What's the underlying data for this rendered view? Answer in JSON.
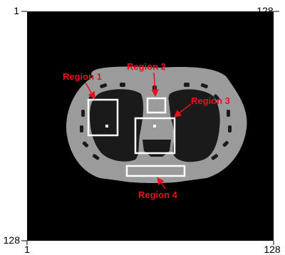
{
  "figure": {
    "axis_ticks": {
      "top_left": "1",
      "top_right": "128",
      "bottom_left": "128",
      "bottom_x_left": "1",
      "bottom_x_right": "128"
    },
    "regions": [
      {
        "label": "Region 1"
      },
      {
        "label": "Region 2"
      },
      {
        "label": "Region 3"
      },
      {
        "label": "Region 4"
      }
    ],
    "colors": {
      "background": "#000000",
      "body": "#9b9b9b",
      "lung": "#1a1a1a",
      "box": "#ffffff",
      "label": "#e8101c"
    }
  }
}
